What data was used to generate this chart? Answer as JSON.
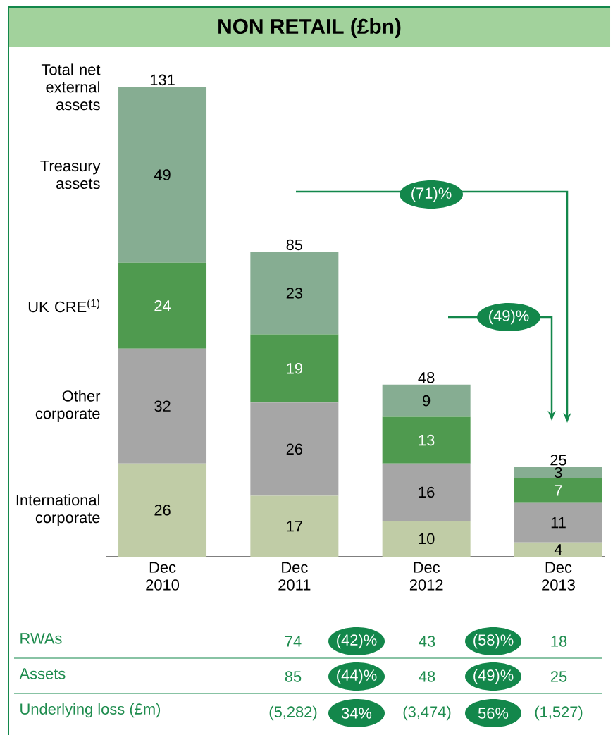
{
  "chart_data": {
    "type": "bar",
    "title": "NON RETAIL (£bn)",
    "categories": [
      "Dec 2010",
      "Dec 2011",
      "Dec 2012",
      "Dec 2013"
    ],
    "stacked": true,
    "data_labels": true,
    "legend": false,
    "series": [
      {
        "name": "International corporate",
        "color": "#c0cca6",
        "values": [
          26,
          17,
          10,
          4
        ]
      },
      {
        "name": "Other corporate",
        "color": "#a6a6a6",
        "values": [
          32,
          26,
          16,
          11
        ]
      },
      {
        "name": "UK CRE$^{(1)}$",
        "color": "#4f9a4f",
        "values": [
          24,
          19,
          13,
          7
        ]
      },
      {
        "name": "Treasury assets",
        "color": "#86ad92",
        "values": [
          49,
          23,
          9,
          3
        ]
      }
    ],
    "totals": [
      "131",
      "85",
      "48",
      "25"
    ],
    "annotations": [
      "Total net external assets",
      "(71)%",
      "(49)%",
      "RWAs",
      "74",
      "(42)%",
      "43",
      "(58)%",
      "18",
      "Assets",
      "85",
      "(44)%",
      "48",
      "(49)%",
      "25",
      "Underlying loss (£m)",
      "(5,282)",
      "34%",
      "(3,474)",
      "56%",
      "(1,527)"
    ]
  }
}
